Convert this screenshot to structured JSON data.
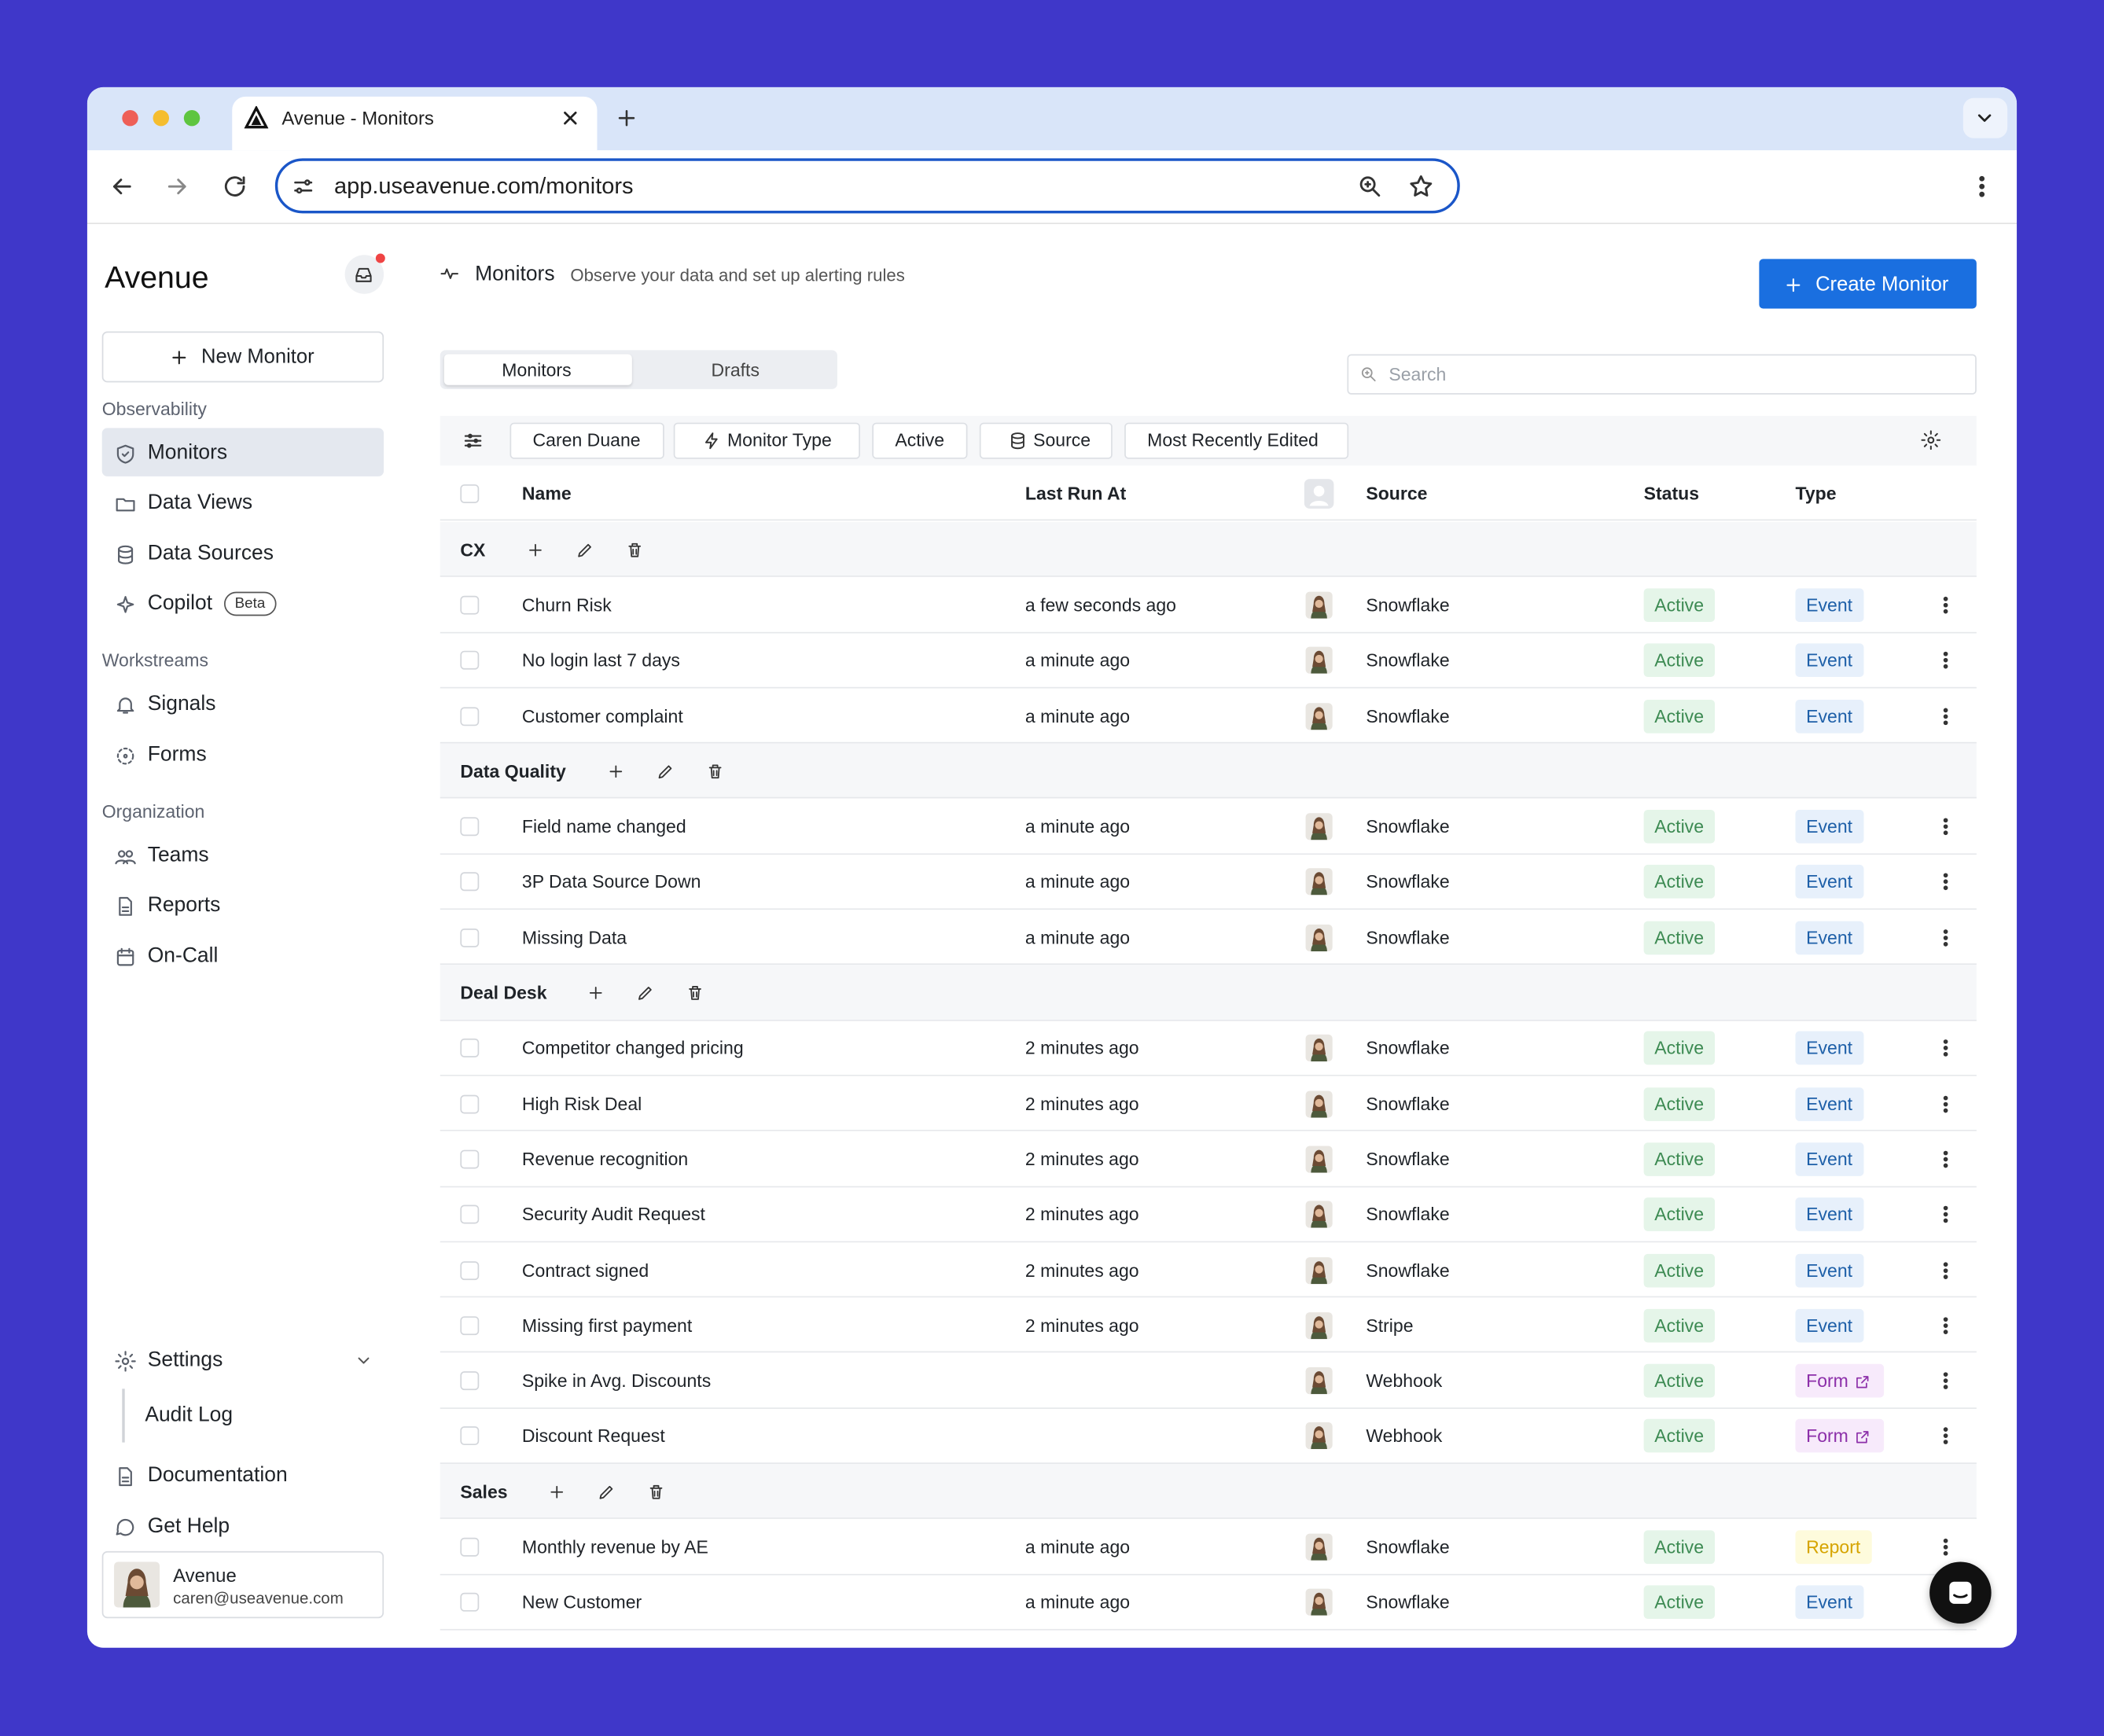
{
  "browser": {
    "tab_title": "Avenue - Monitors",
    "url": "app.useavenue.com/monitors"
  },
  "sidebar": {
    "brand": "Avenue",
    "new_button": "New Monitor",
    "sections": [
      {
        "title": "Observability",
        "items": [
          "Monitors",
          "Data Views",
          "Data Sources",
          "Copilot"
        ],
        "badge": "Beta"
      },
      {
        "title": "Workstreams",
        "items": [
          "Signals",
          "Forms"
        ]
      },
      {
        "title": "Organization",
        "items": [
          "Teams",
          "Reports",
          "On-Call"
        ]
      }
    ],
    "settings": "Settings",
    "audit_log": "Audit Log",
    "documentation": "Documentation",
    "help": "Get Help",
    "user": {
      "name": "Avenue",
      "email": "caren@useavenue.com"
    }
  },
  "header": {
    "title": "Monitors",
    "subtitle": "Observe your data and set up alerting rules",
    "create_button": "Create Monitor"
  },
  "tabs": [
    "Monitors",
    "Drafts"
  ],
  "search_placeholder": "Search",
  "filters": [
    "Caren Duane",
    "Monitor Type",
    "Active",
    "Source",
    "Most Recently Edited"
  ],
  "table": {
    "columns": [
      "Name",
      "Last Run At",
      "Source",
      "Status",
      "Type"
    ],
    "groups": [
      {
        "name": "CX",
        "rows": [
          [
            "Churn Risk",
            "a few seconds ago",
            "Snowflake",
            "Active",
            "Event"
          ],
          [
            "No login last 7 days",
            "a minute ago",
            "Snowflake",
            "Active",
            "Event"
          ],
          [
            "Customer complaint",
            "a minute ago",
            "Snowflake",
            "Active",
            "Event"
          ]
        ]
      },
      {
        "name": "Data Quality",
        "rows": [
          [
            "Field name changed",
            "a minute ago",
            "Snowflake",
            "Active",
            "Event"
          ],
          [
            "3P Data Source Down",
            "a minute ago",
            "Snowflake",
            "Active",
            "Event"
          ],
          [
            "Missing Data",
            "a minute ago",
            "Snowflake",
            "Active",
            "Event"
          ]
        ]
      },
      {
        "name": "Deal Desk",
        "rows": [
          [
            "Competitor changed pricing",
            "2 minutes ago",
            "Snowflake",
            "Active",
            "Event"
          ],
          [
            "High Risk Deal",
            "2 minutes ago",
            "Snowflake",
            "Active",
            "Event"
          ],
          [
            "Revenue recognition",
            "2 minutes ago",
            "Snowflake",
            "Active",
            "Event"
          ],
          [
            "Security Audit Request",
            "2 minutes ago",
            "Snowflake",
            "Active",
            "Event"
          ],
          [
            "Contract signed",
            "2 minutes ago",
            "Snowflake",
            "Active",
            "Event"
          ],
          [
            "Missing first payment",
            "2 minutes ago",
            "Stripe",
            "Active",
            "Event"
          ],
          [
            "Spike in Avg. Discounts",
            null,
            "Webhook",
            "Active",
            "Form"
          ],
          [
            "Discount Request",
            null,
            "Webhook",
            "Active",
            "Form"
          ]
        ]
      },
      {
        "name": "Sales",
        "rows": [
          [
            "Monthly revenue by AE",
            "a minute ago",
            "Snowflake",
            "Active",
            "Report"
          ],
          [
            "New Customer",
            "a minute ago",
            "Snowflake",
            "Active",
            "Event"
          ]
        ]
      }
    ]
  }
}
